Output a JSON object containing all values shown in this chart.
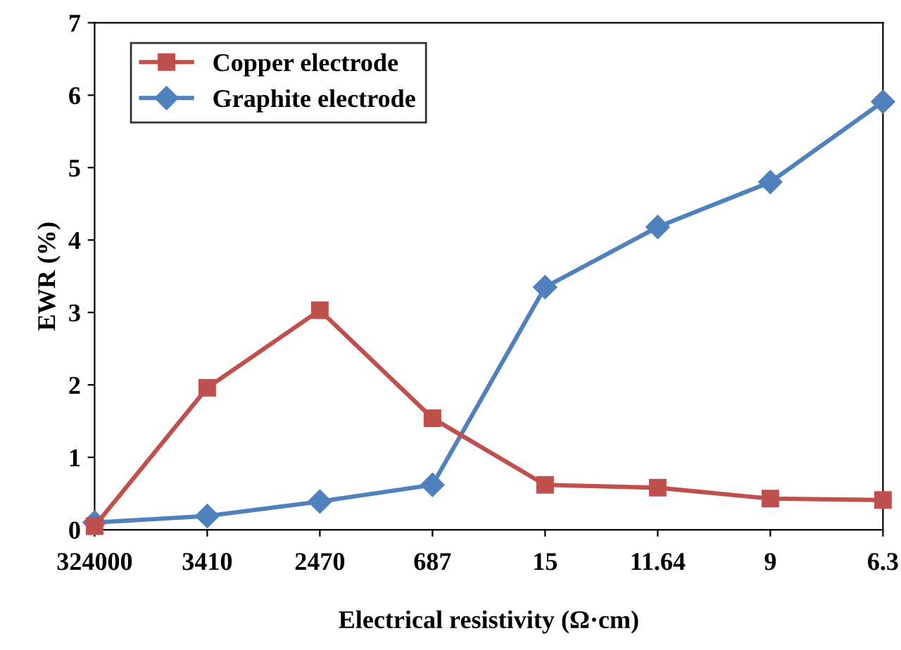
{
  "chart_data": {
    "type": "line",
    "xlabel": "Electrical resistivity (Ω·cm)",
    "ylabel": "EWR (%)",
    "categories": [
      "324000",
      "3410",
      "2470",
      "687",
      "15",
      "11.64",
      "9",
      "6.3"
    ],
    "series": [
      {
        "name": "Copper electrode",
        "color": "#c0504d",
        "marker": "square",
        "values": [
          0.05,
          1.96,
          3.03,
          1.54,
          0.62,
          0.58,
          0.43,
          0.41
        ]
      },
      {
        "name": "Graphite electrode",
        "color": "#4f81bd",
        "marker": "diamond",
        "values": [
          0.1,
          0.19,
          0.39,
          0.62,
          3.35,
          4.18,
          4.8,
          5.91
        ]
      }
    ],
    "ylim": [
      0,
      7
    ],
    "yticks": [
      0,
      1,
      2,
      3,
      4,
      5,
      6,
      7
    ],
    "grid": false,
    "legend": "top left",
    "line_style": "solid"
  }
}
